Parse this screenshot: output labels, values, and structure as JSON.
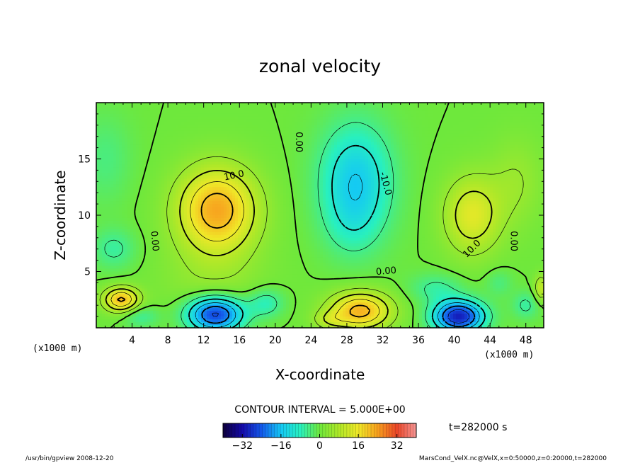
{
  "chart_data": {
    "type": "heatmap",
    "title": "zonal velocity",
    "xlabel": "X-coordinate",
    "ylabel": "Z-coordinate",
    "x_unit_left": "(x1000 m)",
    "x_unit_right": "(x1000 m)",
    "xlim": [
      0,
      50
    ],
    "ylim": [
      0,
      20
    ],
    "x_ticks": [
      4,
      8,
      12,
      16,
      20,
      24,
      28,
      32,
      36,
      40,
      44,
      48
    ],
    "y_ticks": [
      5,
      10,
      15
    ],
    "contour_interval_label": "CONTOUR INTERVAL = 5.000E+00",
    "contour_labels": [
      {
        "text": "10.0",
        "x": 15.4,
        "z": 13.5,
        "angle": -12
      },
      {
        "text": "0.00",
        "x": 22.6,
        "z": 16.5,
        "angle": 90
      },
      {
        "text": "-10.0",
        "x": 32.3,
        "z": 12.8,
        "angle": 75
      },
      {
        "text": "0.00",
        "x": 6.5,
        "z": 7.7,
        "angle": 85
      },
      {
        "text": "0.00",
        "x": 32.4,
        "z": 5.0,
        "angle": -5
      },
      {
        "text": "10.0",
        "x": 42.0,
        "z": 7.0,
        "angle": -45
      },
      {
        "text": "0.00",
        "x": 46.6,
        "z": 7.7,
        "angle": 90
      }
    ],
    "colorbar": {
      "min": -40,
      "max": 40,
      "ticks": [
        -32,
        -16,
        0,
        16,
        32
      ]
    },
    "time_label": "t=282000 s",
    "footer_left": "/usr/bin/gpview   2008-12-20",
    "footer_right": "MarsCond_VelX.nc@VelX,x=0:50000,z=0:20000,t=282000"
  },
  "colors": {
    "background": "#ffffff",
    "zero_field": "#6ee83a"
  }
}
